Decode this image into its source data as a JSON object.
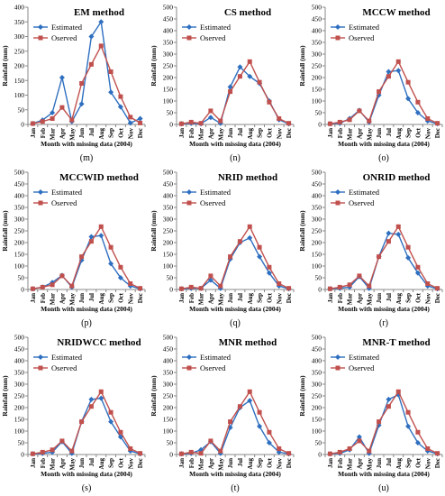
{
  "colors": {
    "estimated": "#2e6fc0",
    "observed": "#c0504d",
    "axis": "#888888"
  },
  "chart_data": [
    {
      "type": "line",
      "title": "EM method",
      "xlabel": "Month with missing data (2004)",
      "ylabel": "Rainfall (mm)",
      "ylim": [
        0,
        400
      ],
      "yticks": [
        0,
        50,
        100,
        150,
        200,
        250,
        300,
        350,
        400
      ],
      "legend": "top-left",
      "caption": "(m)",
      "categories": [
        "Jan",
        "Feb",
        "Mar",
        "Apr",
        "May",
        "Jun",
        "Jul",
        "Aug",
        "Sep",
        "Oct",
        "Nov",
        "Dec"
      ],
      "series": [
        {
          "name": "Estimated",
          "values": [
            3,
            15,
            40,
            160,
            10,
            70,
            300,
            350,
            110,
            60,
            5,
            20
          ]
        },
        {
          "name": "Oserved",
          "values": [
            3,
            10,
            20,
            58,
            15,
            140,
            205,
            268,
            180,
            95,
            25,
            5
          ]
        }
      ]
    },
    {
      "type": "line",
      "title": "CS method",
      "xlabel": "Month with missing data (2004)",
      "ylabel": "Rainfall (mm)",
      "ylim": [
        0,
        500
      ],
      "yticks": [
        0,
        50,
        100,
        150,
        200,
        250,
        300,
        350,
        400,
        450,
        500
      ],
      "legend": "top-left",
      "caption": "(n)",
      "categories": [
        "Jan",
        "Feb",
        "Mar",
        "Apr",
        "May",
        "Jun",
        "Jul",
        "Aug",
        "Sep",
        "Oct",
        "Nov",
        "Dec"
      ],
      "series": [
        {
          "name": "Estimated",
          "values": [
            3,
            5,
            3,
            30,
            5,
            160,
            245,
            205,
            175,
            100,
            20,
            3
          ]
        },
        {
          "name": "Oserved",
          "values": [
            3,
            10,
            5,
            58,
            15,
            140,
            205,
            268,
            180,
            95,
            25,
            5
          ]
        }
      ]
    },
    {
      "type": "line",
      "title": "MCCW method",
      "xlabel": "Month with missing data (2004)",
      "ylabel": "Rainfall (mm)",
      "ylim": [
        0,
        500
      ],
      "yticks": [
        0,
        50,
        100,
        150,
        200,
        250,
        300,
        350,
        400,
        450,
        500
      ],
      "legend": "top-left",
      "caption": "(o)",
      "categories": [
        "Jan",
        "Feb",
        "Mar",
        "Apr",
        "May",
        "Jun",
        "Jul",
        "Aug",
        "Sep",
        "Oct",
        "Nov",
        "Dec"
      ],
      "series": [
        {
          "name": "Estimated",
          "values": [
            3,
            5,
            25,
            60,
            10,
            125,
            225,
            230,
            110,
            50,
            15,
            3
          ]
        },
        {
          "name": "Oserved",
          "values": [
            3,
            10,
            20,
            58,
            15,
            140,
            205,
            268,
            180,
            95,
            25,
            5
          ]
        }
      ]
    },
    {
      "type": "line",
      "title": "MCCWID method",
      "xlabel": "Month with missing data (2004)",
      "ylabel": "Rainfall (mm)",
      "ylim": [
        0,
        500
      ],
      "yticks": [
        0,
        50,
        100,
        150,
        200,
        250,
        300,
        350,
        400,
        450,
        500
      ],
      "legend": "top-left",
      "caption": "(p)",
      "categories": [
        "Jan",
        "Feb",
        "Mar",
        "Apr",
        "May",
        "Jun",
        "Jul",
        "Aug",
        "Sep",
        "Oct",
        "Nov",
        "Dec"
      ],
      "series": [
        {
          "name": "Estimated",
          "values": [
            3,
            10,
            30,
            60,
            10,
            125,
            225,
            230,
            110,
            50,
            15,
            3
          ]
        },
        {
          "name": "Oserved",
          "values": [
            3,
            10,
            20,
            58,
            15,
            140,
            205,
            268,
            180,
            95,
            25,
            5
          ]
        }
      ]
    },
    {
      "type": "line",
      "title": "NRID method",
      "xlabel": "Month with missing data (2004)",
      "ylabel": "Rainfall (mm)",
      "ylim": [
        0,
        500
      ],
      "yticks": [
        0,
        50,
        100,
        150,
        200,
        250,
        300,
        350,
        400,
        450,
        500
      ],
      "legend": "top-left",
      "caption": "(q)",
      "categories": [
        "Jan",
        "Feb",
        "Mar",
        "Apr",
        "May",
        "Jun",
        "Jul",
        "Aug",
        "Sep",
        "Oct",
        "Nov",
        "Dec"
      ],
      "series": [
        {
          "name": "Estimated",
          "values": [
            3,
            5,
            5,
            40,
            5,
            130,
            200,
            220,
            140,
            70,
            15,
            3
          ]
        },
        {
          "name": "Oserved",
          "values": [
            3,
            10,
            5,
            58,
            15,
            140,
            205,
            268,
            180,
            95,
            25,
            5
          ]
        }
      ]
    },
    {
      "type": "line",
      "title": "ONRID method",
      "xlabel": "Month with missing data (2004)",
      "ylabel": "Rainfall (mm)",
      "ylim": [
        0,
        500
      ],
      "yticks": [
        0,
        50,
        100,
        150,
        200,
        250,
        300,
        350,
        400,
        450,
        500
      ],
      "legend": "top-left",
      "caption": "(r)",
      "categories": [
        "Jan",
        "Feb",
        "Mar",
        "Apr",
        "May",
        "Jun",
        "Jul",
        "Aug",
        "Sep",
        "Oct",
        "Nov",
        "Dec"
      ],
      "series": [
        {
          "name": "Estimated",
          "values": [
            3,
            5,
            10,
            55,
            5,
            140,
            240,
            235,
            135,
            70,
            15,
            3
          ]
        },
        {
          "name": "Oserved",
          "values": [
            3,
            10,
            20,
            58,
            15,
            140,
            205,
            268,
            180,
            95,
            25,
            5
          ]
        }
      ]
    },
    {
      "type": "line",
      "title": "NRIDWCC method",
      "xlabel": "Month with missing data (2004)",
      "ylabel": "Rainfall (mm)",
      "ylim": [
        0,
        500
      ],
      "yticks": [
        0,
        50,
        100,
        150,
        200,
        250,
        300,
        350,
        400,
        450,
        500
      ],
      "legend": "top-left",
      "caption": "(s)",
      "categories": [
        "Jan",
        "Feb",
        "Mar",
        "Apr",
        "May",
        "Jun",
        "Jul",
        "Aug",
        "Sep",
        "Oct",
        "Nov",
        "Dec"
      ],
      "series": [
        {
          "name": "Estimated",
          "values": [
            3,
            5,
            10,
            55,
            5,
            140,
            235,
            240,
            140,
            75,
            15,
            3
          ]
        },
        {
          "name": "Oserved",
          "values": [
            3,
            10,
            20,
            58,
            15,
            140,
            205,
            268,
            180,
            95,
            25,
            5
          ]
        }
      ]
    },
    {
      "type": "line",
      "title": "MNR method",
      "xlabel": "Month with missing data (2004)",
      "ylabel": "Rainfall (mm)",
      "ylim": [
        0,
        500
      ],
      "yticks": [
        0,
        50,
        100,
        150,
        200,
        250,
        300,
        350,
        400,
        450,
        500
      ],
      "legend": "top-left",
      "caption": "(t)",
      "categories": [
        "Jan",
        "Feb",
        "Mar",
        "Apr",
        "May",
        "Jun",
        "Jul",
        "Aug",
        "Sep",
        "Oct",
        "Nov",
        "Dec"
      ],
      "series": [
        {
          "name": "Estimated",
          "values": [
            3,
            5,
            20,
            55,
            5,
            115,
            200,
            230,
            120,
            50,
            10,
            3
          ]
        },
        {
          "name": "Oserved",
          "values": [
            3,
            10,
            5,
            58,
            15,
            140,
            205,
            268,
            180,
            95,
            25,
            5
          ]
        }
      ]
    },
    {
      "type": "line",
      "title": "MNR-T method",
      "xlabel": "Month with missing data (2004)",
      "ylabel": "Rainfall (mm)",
      "ylim": [
        0,
        500
      ],
      "yticks": [
        0,
        50,
        100,
        150,
        200,
        250,
        300,
        350,
        400,
        450,
        500
      ],
      "legend": "top-left",
      "caption": "(u)",
      "categories": [
        "Jan",
        "Feb",
        "Mar",
        "Apr",
        "May",
        "Jun",
        "Jul",
        "Aug",
        "Sep",
        "Oct",
        "Nov",
        "Dec"
      ],
      "series": [
        {
          "name": "Estimated",
          "values": [
            3,
            5,
            20,
            75,
            5,
            125,
            235,
            255,
            120,
            50,
            15,
            3
          ]
        },
        {
          "name": "Oserved",
          "values": [
            3,
            10,
            25,
            58,
            15,
            140,
            205,
            268,
            180,
            95,
            25,
            5
          ]
        }
      ]
    }
  ]
}
